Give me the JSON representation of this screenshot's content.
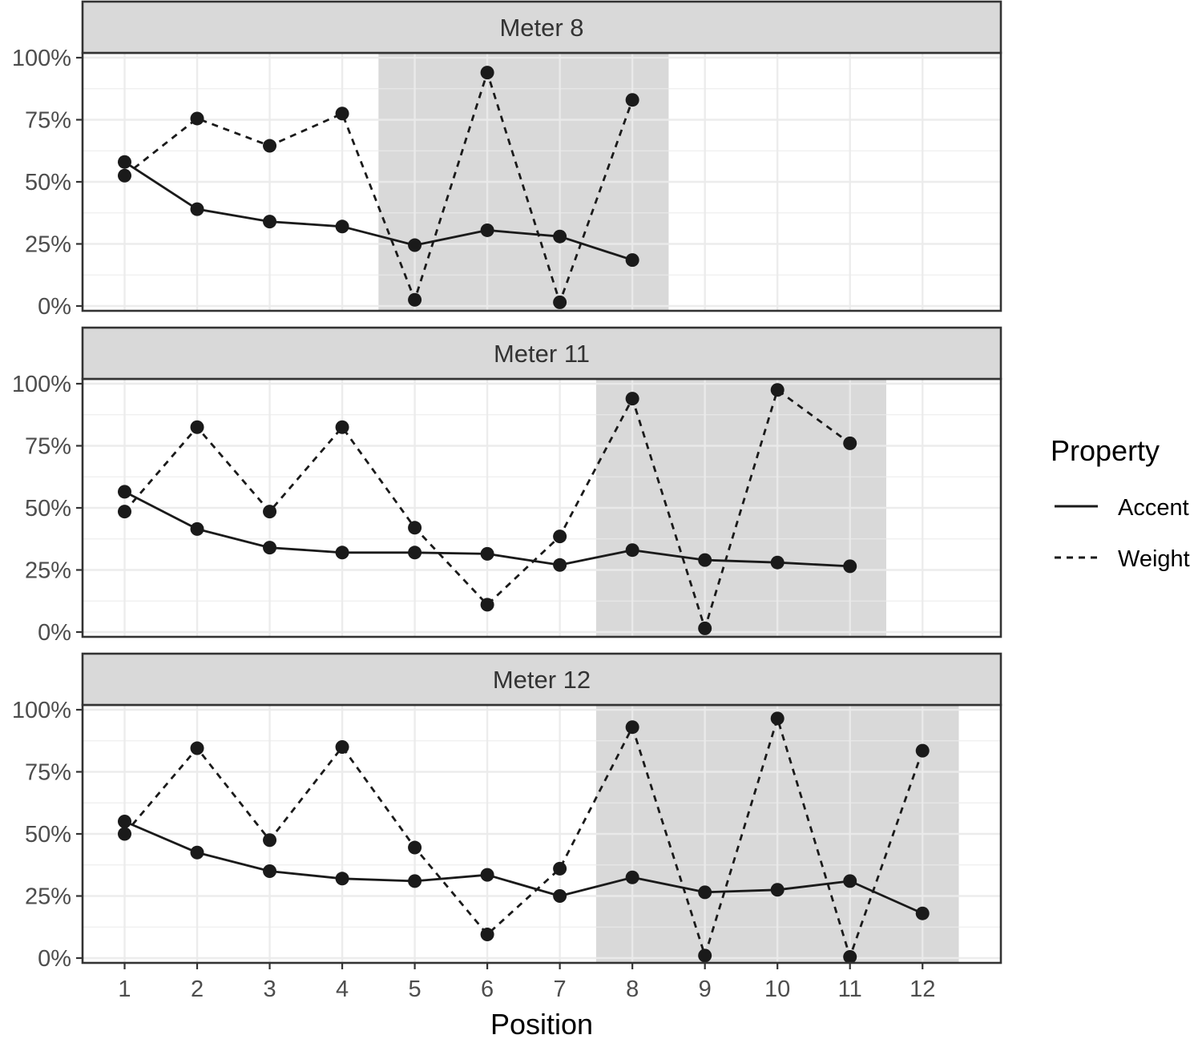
{
  "chart_data": {
    "type": "line",
    "xlabel": "Position",
    "ylabel": "",
    "x_ticks": [
      1,
      2,
      3,
      4,
      5,
      6,
      7,
      8,
      9,
      10,
      11,
      12
    ],
    "xlim": [
      0.42,
      13.08
    ],
    "ylim": [
      0,
      1
    ],
    "y_ticks": [
      0,
      0.25,
      0.5,
      0.75,
      1
    ],
    "y_tick_labels": [
      "0%",
      "25%",
      "50%",
      "75%",
      "100%"
    ],
    "grid": true,
    "legend": {
      "title": "Property",
      "position": "right",
      "entries": [
        {
          "label": "Accent",
          "linetype": "solid"
        },
        {
          "label": "Weight",
          "linetype": "dashed"
        }
      ]
    },
    "colors": {
      "line": "#1a1a1a",
      "strip_fill": "#d9d9d9",
      "shade": "#d9d9d9",
      "panel_border": "#333333",
      "grid_major": "#ebebeb"
    },
    "panels": [
      {
        "strip": "Meter 8",
        "shaded_x": [
          4.5,
          8.5
        ],
        "series": [
          {
            "name": "Accent",
            "x": [
              1,
              2,
              3,
              4,
              5,
              6,
              7,
              8
            ],
            "values": [
              0.58,
              0.39,
              0.34,
              0.32,
              0.245,
              0.305,
              0.28,
              0.185
            ]
          },
          {
            "name": "Weight",
            "x": [
              1,
              2,
              3,
              4,
              5,
              6,
              7,
              8
            ],
            "values": [
              0.525,
              0.755,
              0.645,
              0.775,
              0.025,
              0.94,
              0.015,
              0.83
            ]
          }
        ]
      },
      {
        "strip": "Meter 11",
        "shaded_x": [
          7.5,
          11.5
        ],
        "series": [
          {
            "name": "Accent",
            "x": [
              1,
              2,
              3,
              4,
              5,
              6,
              7,
              8,
              9,
              10,
              11
            ],
            "values": [
              0.565,
              0.415,
              0.34,
              0.32,
              0.32,
              0.315,
              0.27,
              0.33,
              0.29,
              0.28,
              0.265
            ]
          },
          {
            "name": "Weight",
            "x": [
              1,
              2,
              3,
              4,
              5,
              6,
              7,
              8,
              9,
              10,
              11
            ],
            "values": [
              0.485,
              0.825,
              0.485,
              0.825,
              0.42,
              0.11,
              0.385,
              0.94,
              0.015,
              0.975,
              0.76
            ]
          }
        ]
      },
      {
        "strip": "Meter 12",
        "shaded_x": [
          7.5,
          12.5
        ],
        "series": [
          {
            "name": "Accent",
            "x": [
              1,
              2,
              3,
              4,
              5,
              6,
              7,
              8,
              9,
              10,
              11,
              12
            ],
            "values": [
              0.55,
              0.425,
              0.35,
              0.32,
              0.31,
              0.335,
              0.25,
              0.325,
              0.265,
              0.275,
              0.31,
              0.18
            ]
          },
          {
            "name": "Weight",
            "x": [
              1,
              2,
              3,
              4,
              5,
              6,
              7,
              8,
              9,
              10,
              11,
              12
            ],
            "values": [
              0.5,
              0.845,
              0.475,
              0.85,
              0.445,
              0.095,
              0.36,
              0.93,
              0.01,
              0.965,
              0.005,
              0.835
            ]
          }
        ]
      }
    ]
  }
}
